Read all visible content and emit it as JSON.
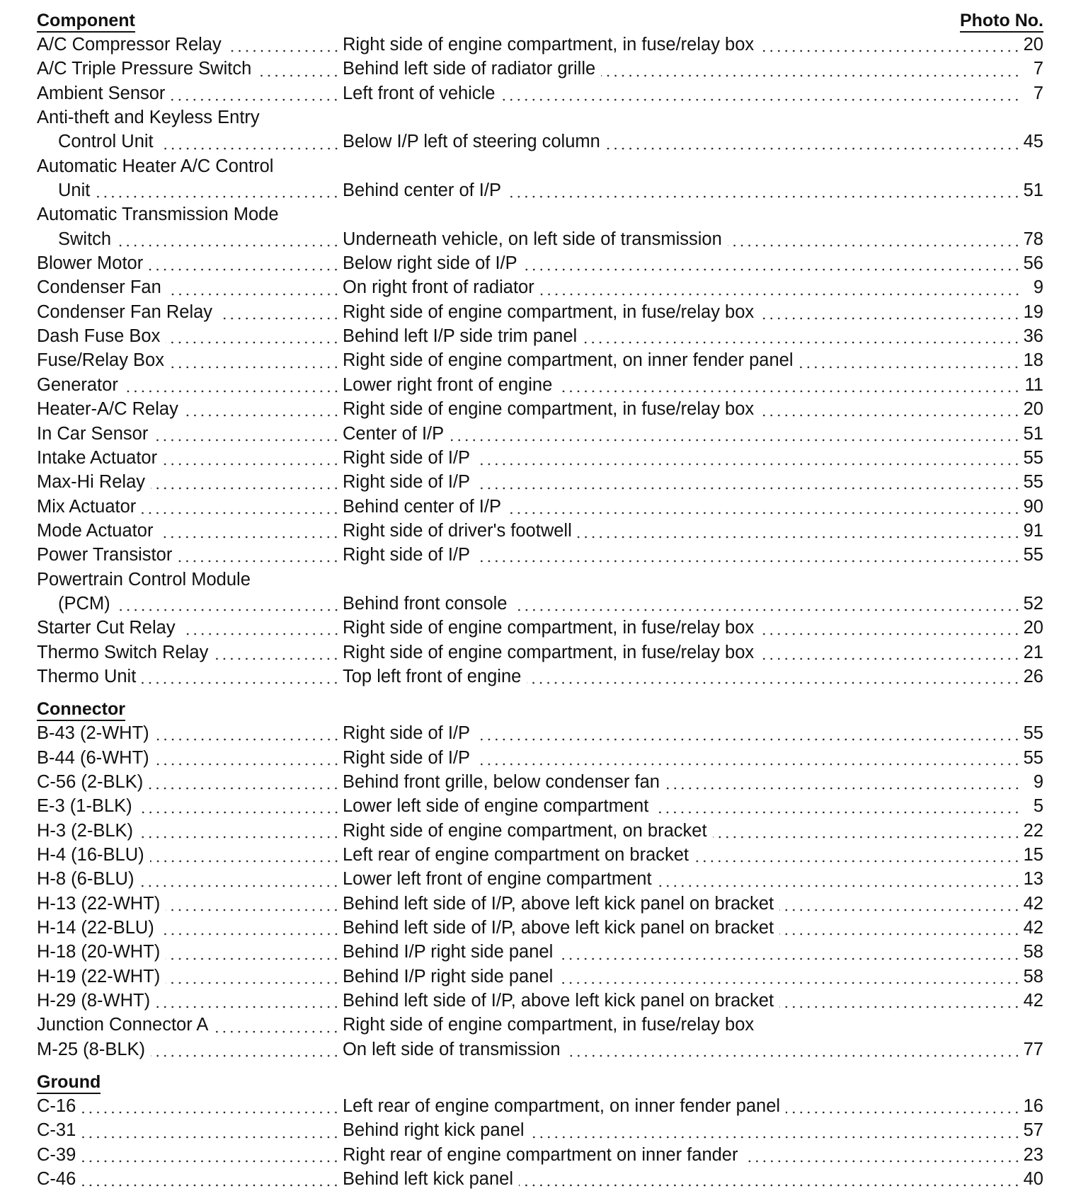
{
  "header": {
    "component": "Component",
    "photo_no": "Photo No."
  },
  "sections": [
    {
      "title": "",
      "rows": [
        {
          "component": [
            "A/C Compressor Relay"
          ],
          "location": "Right side of engine compartment, in fuse/relay box",
          "photo": "20"
        },
        {
          "component": [
            "A/C Triple Pressure Switch"
          ],
          "location": "Behind left side of radiator grille",
          "photo": "7"
        },
        {
          "component": [
            "Ambient Sensor"
          ],
          "location": "Left front of vehicle",
          "photo": "7"
        },
        {
          "component": [
            "Anti-theft and Keyless Entry",
            "Control Unit"
          ],
          "location": "Below I/P left of steering column",
          "photo": "45"
        },
        {
          "component": [
            "Automatic Heater A/C Control",
            "Unit"
          ],
          "location": "Behind center of I/P",
          "photo": "51"
        },
        {
          "component": [
            "Automatic Transmission Mode",
            "Switch"
          ],
          "location": "Underneath vehicle, on left side of transmission",
          "photo": "78"
        },
        {
          "component": [
            "Blower Motor"
          ],
          "location": "Below right side of I/P",
          "photo": "56"
        },
        {
          "component": [
            "Condenser Fan"
          ],
          "location": "On right front of radiator",
          "photo": "9"
        },
        {
          "component": [
            "Condenser Fan Relay"
          ],
          "location": "Right side of engine compartment, in fuse/relay box",
          "photo": "19"
        },
        {
          "component": [
            "Dash Fuse Box"
          ],
          "location": "Behind left I/P side trim panel",
          "photo": "36"
        },
        {
          "component": [
            "Fuse/Relay Box"
          ],
          "location": "Right side of engine compartment, on inner fender panel",
          "photo": "18"
        },
        {
          "component": [
            "Generator"
          ],
          "location": "Lower right front of engine",
          "photo": "11"
        },
        {
          "component": [
            "Heater-A/C Relay"
          ],
          "location": "Right side of engine compartment, in fuse/relay box",
          "photo": "20"
        },
        {
          "component": [
            "In Car Sensor"
          ],
          "location": "Center of I/P",
          "photo": "51"
        },
        {
          "component": [
            "Intake Actuator"
          ],
          "location": "Right side of I/P",
          "photo": "55"
        },
        {
          "component": [
            "Max-Hi Relay"
          ],
          "location": "Right side of I/P",
          "photo": "55"
        },
        {
          "component": [
            "Mix Actuator"
          ],
          "location": "Behind center of I/P",
          "photo": "90"
        },
        {
          "component": [
            "Mode Actuator"
          ],
          "location": "Right side of driver's footwell",
          "photo": "91"
        },
        {
          "component": [
            "Power Transistor"
          ],
          "location": "Right side of I/P",
          "photo": "55"
        },
        {
          "component": [
            "Powertrain Control Module",
            "(PCM)"
          ],
          "location": "Behind front console",
          "photo": "52"
        },
        {
          "component": [
            "Starter Cut Relay"
          ],
          "location": "Right side of engine compartment, in fuse/relay box",
          "photo": "20"
        },
        {
          "component": [
            "Thermo Switch Relay"
          ],
          "location": "Right side of engine compartment, in fuse/relay box",
          "photo": "21"
        },
        {
          "component": [
            "Thermo Unit"
          ],
          "location": "Top left front of engine",
          "photo": "26"
        }
      ]
    },
    {
      "title": "Connector",
      "rows": [
        {
          "component": [
            "B-43 (2-WHT)"
          ],
          "location": "Right side of I/P",
          "photo": "55"
        },
        {
          "component": [
            "B-44 (6-WHT)"
          ],
          "location": "Right side of I/P",
          "photo": "55"
        },
        {
          "component": [
            "C-56 (2-BLK)"
          ],
          "location": "Behind front grille, below condenser fan",
          "photo": "9"
        },
        {
          "component": [
            "E-3 (1-BLK)"
          ],
          "location": "Lower left side of engine compartment",
          "photo": "5"
        },
        {
          "component": [
            "H-3 (2-BLK)"
          ],
          "location": "Right side of engine compartment, on bracket",
          "photo": "22"
        },
        {
          "component": [
            "H-4 (16-BLU)"
          ],
          "location": "Left rear of engine compartment on bracket",
          "photo": "15"
        },
        {
          "component": [
            "H-8 (6-BLU)"
          ],
          "location": "Lower left front of engine compartment",
          "photo": "13"
        },
        {
          "component": [
            "H-13 (22-WHT)"
          ],
          "location": "Behind left side of I/P, above left kick panel on bracket",
          "photo": "42"
        },
        {
          "component": [
            "H-14 (22-BLU)"
          ],
          "location": "Behind left side of I/P, above left kick panel on bracket",
          "photo": "42"
        },
        {
          "component": [
            "H-18 (20-WHT)"
          ],
          "location": "Behind I/P right side panel",
          "photo": "58"
        },
        {
          "component": [
            "H-19 (22-WHT)"
          ],
          "location": "Behind I/P right side panel",
          "photo": "58"
        },
        {
          "component": [
            "H-29 (8-WHT)"
          ],
          "location": "Behind left side of I/P, above left kick panel on bracket",
          "photo": "42"
        },
        {
          "component": [
            "Junction Connector A"
          ],
          "location": "Right side of engine compartment, in fuse/relay box",
          "photo": ""
        },
        {
          "component": [
            "M-25 (8-BLK)"
          ],
          "location": "On left side of transmission",
          "photo": "77"
        }
      ]
    },
    {
      "title": "Ground",
      "rows": [
        {
          "component": [
            "C-16"
          ],
          "location": "Left rear of engine compartment, on inner fender panel",
          "photo": "16"
        },
        {
          "component": [
            "C-31"
          ],
          "location": "Behind right kick panel",
          "photo": "57"
        },
        {
          "component": [
            "C-39"
          ],
          "location": "Right rear of engine compartment on inner fander",
          "photo": "23"
        },
        {
          "component": [
            "C-46"
          ],
          "location": "Behind left kick panel",
          "photo": "40"
        }
      ]
    }
  ]
}
